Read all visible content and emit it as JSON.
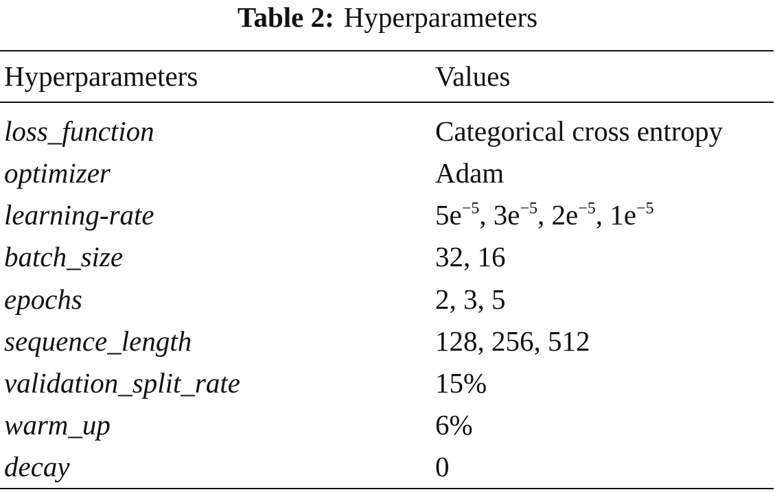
{
  "caption": {
    "label": "Table 2:",
    "title": "Hyperparameters"
  },
  "table": {
    "headers": {
      "param": "Hyperparameters",
      "value": "Values"
    },
    "rows": [
      {
        "param": "loss_function",
        "value": "Categorical cross entropy"
      },
      {
        "param": "optimizer",
        "value": "Adam"
      },
      {
        "param": "learning-rate",
        "value": "5e−5, 3e−5, 2e−5, 1e−5"
      },
      {
        "param": "batch_size",
        "value": "32, 16"
      },
      {
        "param": "epochs",
        "value": "2, 3, 5"
      },
      {
        "param": "sequence_length",
        "value": "128, 256, 512"
      },
      {
        "param": "validation_split_rate",
        "value": "15%"
      },
      {
        "param": "warm_up",
        "value": "6%"
      },
      {
        "param": "decay",
        "value": "0"
      }
    ]
  }
}
